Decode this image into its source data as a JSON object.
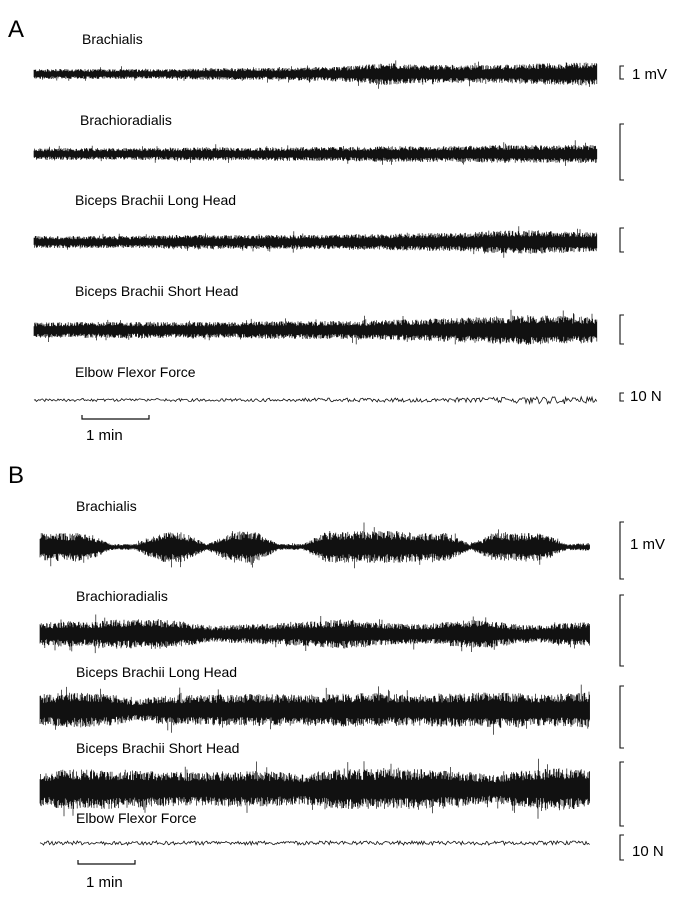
{
  "panels": [
    {
      "letter": "A",
      "traces": [
        {
          "label": "Brachialis",
          "kind": "emg",
          "envelope": [
            5,
            5,
            5,
            5,
            5,
            6,
            6,
            6,
            7,
            8,
            11,
            9,
            9,
            9,
            10,
            11,
            12
          ],
          "scale_label": "1 mV"
        },
        {
          "label": "Brachioradialis",
          "kind": "emg",
          "envelope": [
            6,
            6,
            6,
            6,
            6,
            7,
            6,
            7,
            7,
            7,
            8,
            8,
            8,
            9,
            9,
            9,
            9
          ],
          "scale_label": ""
        },
        {
          "label": "Biceps Brachii Long Head",
          "kind": "emg",
          "envelope": [
            6,
            6,
            6,
            6,
            7,
            7,
            7,
            7,
            7,
            8,
            8,
            9,
            9,
            11,
            12,
            11,
            10
          ],
          "scale_label": ""
        },
        {
          "label": "Biceps Brachii Short Head",
          "kind": "emg",
          "envelope": [
            8,
            8,
            8,
            8,
            8,
            8,
            8,
            9,
            9,
            9,
            10,
            11,
            12,
            14,
            15,
            14,
            13
          ],
          "scale_label": ""
        },
        {
          "label": "Elbow Flexor Force",
          "kind": "force",
          "envelope": [
            1.5,
            1.5,
            1.5,
            1.5,
            1.5,
            1.5,
            1.5,
            1.8,
            1.8,
            2,
            2,
            2.2,
            2.2,
            2.5,
            3.5,
            4,
            3
          ],
          "scale_label": "10 N"
        }
      ],
      "time_scale_label": "1 min"
    },
    {
      "letter": "B",
      "traces": [
        {
          "label": "Brachialis",
          "kind": "emg",
          "envelope": [
            14,
            14,
            14,
            3,
            3,
            15,
            15,
            3,
            16,
            16,
            3,
            3,
            16,
            16,
            16,
            16,
            14,
            14,
            3,
            14,
            14,
            14,
            3,
            4
          ],
          "scale_label": "1 mV"
        },
        {
          "label": "Brachioradialis",
          "kind": "emg",
          "envelope": [
            11,
            13,
            12,
            14,
            15,
            15,
            13,
            8,
            9,
            10,
            11,
            12,
            14,
            15,
            12,
            11,
            10,
            12,
            14,
            13,
            9,
            9,
            11,
            12
          ],
          "scale_label": ""
        },
        {
          "label": "Biceps Brachii Long Head",
          "kind": "emg",
          "envelope": [
            16,
            17,
            17,
            16,
            10,
            14,
            15,
            15,
            16,
            16,
            16,
            16,
            16,
            17,
            17,
            16,
            16,
            17,
            17,
            18,
            17,
            16,
            17,
            18
          ],
          "scale_label": ""
        },
        {
          "label": "Biceps Brachii Short Head",
          "kind": "emg",
          "envelope": [
            17,
            20,
            20,
            20,
            19,
            18,
            17,
            17,
            18,
            18,
            17,
            15,
            19,
            20,
            20,
            20,
            20,
            18,
            17,
            14,
            18,
            20,
            21,
            20
          ],
          "scale_label": ""
        },
        {
          "label": "Elbow Flexor Force",
          "kind": "force",
          "envelope": [
            2,
            2,
            2,
            2,
            2,
            2,
            2,
            2,
            2,
            2,
            2,
            2,
            2,
            2,
            2,
            2,
            2,
            2,
            2,
            2,
            2,
            2,
            2,
            2
          ],
          "scale_label": "10 N"
        }
      ],
      "time_scale_label": "1 min"
    }
  ]
}
